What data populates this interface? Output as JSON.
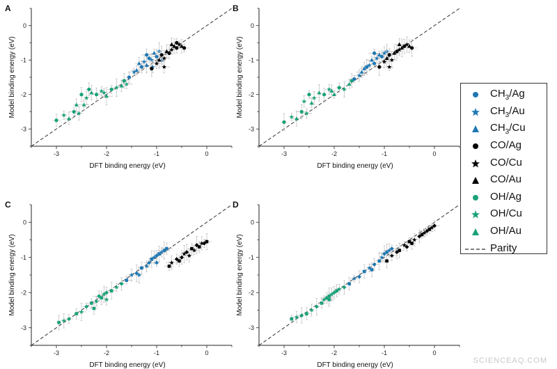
{
  "watermark": "SCIENCEAQ.COM",
  "colors": {
    "blue": "#1f78b4",
    "green": "#19a279",
    "black": "#000000",
    "error": "#bdbdbd",
    "parity": "#333333"
  },
  "legend": {
    "placement": "right",
    "items": [
      {
        "species": "CH",
        "sub": "3",
        "metal": "/Ag",
        "marker": "circle",
        "color": "#1f78b4"
      },
      {
        "species": "CH",
        "sub": "3",
        "metal": "/Au",
        "marker": "star",
        "color": "#1f78b4"
      },
      {
        "species": "CH",
        "sub": "3",
        "metal": "/Cu",
        "marker": "triangle",
        "color": "#1f78b4"
      },
      {
        "species": "CO",
        "sub": "",
        "metal": "/Ag",
        "marker": "circle",
        "color": "#000000"
      },
      {
        "species": "CO",
        "sub": "",
        "metal": "/Cu",
        "marker": "star",
        "color": "#000000"
      },
      {
        "species": "CO",
        "sub": "",
        "metal": "/Au",
        "marker": "triangle",
        "color": "#000000"
      },
      {
        "species": "OH",
        "sub": "",
        "metal": "/Ag",
        "marker": "circle",
        "color": "#19a279"
      },
      {
        "species": "OH",
        "sub": "",
        "metal": "/Cu",
        "marker": "star",
        "color": "#19a279"
      },
      {
        "species": "OH",
        "sub": "",
        "metal": "/Au",
        "marker": "triangle",
        "color": "#19a279"
      },
      {
        "species": "Parity",
        "sub": "",
        "metal": "",
        "marker": "dashed-line",
        "color": "#333333"
      }
    ]
  },
  "chart_data": [
    {
      "type": "scatter",
      "panel": "A",
      "xlabel": "DFT binding energy (eV)",
      "ylabel": "Model binding energy (eV)",
      "xlim": [
        -3.5,
        0.5
      ],
      "ylim": [
        -3.5,
        0.5
      ],
      "xticks": [
        -3,
        -2,
        -1,
        0
      ],
      "yticks": [
        -3,
        -2,
        -1,
        0
      ],
      "grid": false,
      "parity_line": true,
      "series": [
        {
          "group": "OH",
          "color": "#19a279",
          "points": [
            [
              -3.0,
              -2.75
            ],
            [
              -2.85,
              -2.6
            ],
            [
              -2.75,
              -2.7
            ],
            [
              -2.65,
              -2.5
            ],
            [
              -2.55,
              -2.55
            ],
            [
              -2.45,
              -2.3
            ],
            [
              -2.5,
              -2.0
            ],
            [
              -2.4,
              -2.1
            ],
            [
              -2.3,
              -1.95
            ],
            [
              -2.2,
              -2.0
            ],
            [
              -2.1,
              -1.9
            ],
            [
              -2.0,
              -2.05
            ],
            [
              -1.9,
              -1.85
            ],
            [
              -1.8,
              -1.8
            ],
            [
              -1.7,
              -1.75
            ],
            [
              -1.65,
              -1.6
            ],
            [
              -1.6,
              -1.7
            ],
            [
              -2.6,
              -2.3
            ],
            [
              -2.35,
              -1.85
            ],
            [
              -2.05,
              -1.95
            ]
          ]
        },
        {
          "group": "CH3",
          "color": "#1f78b4",
          "points": [
            [
              -1.55,
              -1.5
            ],
            [
              -1.45,
              -1.35
            ],
            [
              -1.4,
              -1.3
            ],
            [
              -1.3,
              -1.2
            ],
            [
              -1.25,
              -1.05
            ],
            [
              -1.2,
              -1.15
            ],
            [
              -1.15,
              -0.95
            ],
            [
              -1.1,
              -1.0
            ],
            [
              -1.05,
              -0.8
            ],
            [
              -1.0,
              -0.9
            ],
            [
              -0.95,
              -0.75
            ],
            [
              -1.35,
              -1.1
            ],
            [
              -1.2,
              -0.85
            ],
            [
              -1.08,
              -1.2
            ],
            [
              -0.9,
              -1.0
            ]
          ]
        },
        {
          "group": "CO",
          "color": "#000000",
          "points": [
            [
              -1.1,
              -1.25
            ],
            [
              -1.0,
              -1.1
            ],
            [
              -0.95,
              -1.0
            ],
            [
              -0.9,
              -0.85
            ],
            [
              -0.85,
              -0.95
            ],
            [
              -0.8,
              -0.75
            ],
            [
              -0.75,
              -0.8
            ],
            [
              -0.7,
              -0.7
            ],
            [
              -0.65,
              -0.6
            ],
            [
              -0.6,
              -0.65
            ],
            [
              -0.55,
              -0.55
            ],
            [
              -0.5,
              -0.6
            ],
            [
              -0.45,
              -0.65
            ],
            [
              -0.85,
              -1.2
            ],
            [
              -0.7,
              -0.55
            ],
            [
              -0.6,
              -0.5
            ]
          ]
        }
      ]
    },
    {
      "type": "scatter",
      "panel": "B",
      "xlabel": "DFT binding energy (eV)",
      "ylabel": "Model binding energy (eV)",
      "xlim": [
        -3.5,
        0.5
      ],
      "ylim": [
        -3.5,
        0.5
      ],
      "xticks": [
        -3,
        -2,
        -1,
        0
      ],
      "yticks": [
        -3,
        -2,
        -1,
        0
      ],
      "grid": false,
      "parity_line": true,
      "series": [
        {
          "group": "OH",
          "color": "#19a279",
          "points": [
            [
              -3.0,
              -2.8
            ],
            [
              -2.85,
              -2.65
            ],
            [
              -2.75,
              -2.7
            ],
            [
              -2.65,
              -2.5
            ],
            [
              -2.55,
              -2.55
            ],
            [
              -2.45,
              -2.25
            ],
            [
              -2.5,
              -2.0
            ],
            [
              -2.4,
              -2.1
            ],
            [
              -2.3,
              -1.95
            ],
            [
              -2.2,
              -2.0
            ],
            [
              -2.1,
              -1.85
            ],
            [
              -2.0,
              -2.0
            ],
            [
              -1.9,
              -1.8
            ],
            [
              -1.8,
              -1.85
            ],
            [
              -1.7,
              -1.7
            ],
            [
              -1.65,
              -1.6
            ],
            [
              -2.6,
              -2.2
            ],
            [
              -2.05,
              -1.9
            ]
          ]
        },
        {
          "group": "CH3",
          "color": "#1f78b4",
          "points": [
            [
              -1.6,
              -1.55
            ],
            [
              -1.5,
              -1.45
            ],
            [
              -1.45,
              -1.35
            ],
            [
              -1.35,
              -1.2
            ],
            [
              -1.3,
              -1.15
            ],
            [
              -1.25,
              -1.0
            ],
            [
              -1.2,
              -1.1
            ],
            [
              -1.15,
              -0.95
            ],
            [
              -1.1,
              -0.85
            ],
            [
              -1.05,
              -0.9
            ],
            [
              -1.0,
              -0.8
            ],
            [
              -1.4,
              -1.25
            ],
            [
              -1.2,
              -0.8
            ],
            [
              -0.95,
              -0.75
            ]
          ]
        },
        {
          "group": "CO",
          "color": "#000000",
          "points": [
            [
              -1.1,
              -1.2
            ],
            [
              -1.0,
              -1.05
            ],
            [
              -0.95,
              -0.95
            ],
            [
              -0.9,
              -0.85
            ],
            [
              -0.85,
              -1.0
            ],
            [
              -0.8,
              -0.8
            ],
            [
              -0.75,
              -0.75
            ],
            [
              -0.7,
              -0.7
            ],
            [
              -0.65,
              -0.65
            ],
            [
              -0.6,
              -0.6
            ],
            [
              -0.55,
              -0.55
            ],
            [
              -0.5,
              -0.6
            ],
            [
              -0.45,
              -0.65
            ],
            [
              -0.9,
              -1.2
            ],
            [
              -0.7,
              -0.55
            ]
          ]
        }
      ]
    },
    {
      "type": "scatter",
      "panel": "C",
      "xlabel": "DFT binding energy (eV)",
      "ylabel": "Model binding energy (eV)",
      "xlim": [
        -3.5,
        0.5
      ],
      "ylim": [
        -3.5,
        0.5
      ],
      "xticks": [
        -3,
        -2,
        -1,
        0
      ],
      "yticks": [
        -3,
        -2,
        -1,
        0
      ],
      "grid": false,
      "parity_line": true,
      "series": [
        {
          "group": "OH",
          "color": "#19a279",
          "points": [
            [
              -2.95,
              -2.85
            ],
            [
              -2.85,
              -2.8
            ],
            [
              -2.75,
              -2.75
            ],
            [
              -2.6,
              -2.6
            ],
            [
              -2.5,
              -2.55
            ],
            [
              -2.4,
              -2.4
            ],
            [
              -2.3,
              -2.3
            ],
            [
              -2.2,
              -2.25
            ],
            [
              -2.15,
              -2.1
            ],
            [
              -2.1,
              -2.15
            ],
            [
              -2.05,
              -2.05
            ],
            [
              -2.0,
              -2.0
            ],
            [
              -1.9,
              -1.95
            ],
            [
              -1.8,
              -1.85
            ],
            [
              -1.7,
              -1.75
            ],
            [
              -2.25,
              -2.45
            ],
            [
              -2.0,
              -2.2
            ]
          ]
        },
        {
          "group": "CH3",
          "color": "#1f78b4",
          "points": [
            [
              -1.6,
              -1.65
            ],
            [
              -1.5,
              -1.5
            ],
            [
              -1.4,
              -1.45
            ],
            [
              -1.3,
              -1.3
            ],
            [
              -1.2,
              -1.25
            ],
            [
              -1.15,
              -1.15
            ],
            [
              -1.1,
              -1.05
            ],
            [
              -1.05,
              -1.0
            ],
            [
              -1.0,
              -0.95
            ],
            [
              -0.95,
              -0.9
            ],
            [
              -0.9,
              -0.85
            ],
            [
              -0.85,
              -0.8
            ],
            [
              -0.8,
              -0.75
            ],
            [
              -1.35,
              -1.5
            ],
            [
              -1.0,
              -1.15
            ]
          ]
        },
        {
          "group": "CO",
          "color": "#000000",
          "points": [
            [
              -0.75,
              -1.25
            ],
            [
              -0.7,
              -1.15
            ],
            [
              -0.6,
              -1.05
            ],
            [
              -0.55,
              -1.1
            ],
            [
              -0.45,
              -0.9
            ],
            [
              -0.4,
              -0.85
            ],
            [
              -0.3,
              -0.75
            ],
            [
              -0.25,
              -0.8
            ],
            [
              -0.2,
              -0.65
            ],
            [
              -0.15,
              -0.7
            ],
            [
              -0.1,
              -0.6
            ],
            [
              -0.05,
              -0.6
            ],
            [
              0.0,
              -0.55
            ],
            [
              -0.35,
              -0.95
            ],
            [
              -0.5,
              -1.0
            ]
          ]
        }
      ]
    },
    {
      "type": "scatter",
      "panel": "D",
      "xlabel": "DFT binding energy (eV)",
      "ylabel": "Model binding energy (eV)",
      "xlim": [
        -3.5,
        0.5
      ],
      "ylim": [
        -3.5,
        0.5
      ],
      "xticks": [
        -3,
        -2,
        -1,
        0
      ],
      "yticks": [
        -3,
        -2,
        -1,
        0
      ],
      "grid": false,
      "parity_line": true,
      "series": [
        {
          "group": "OH",
          "color": "#19a279",
          "points": [
            [
              -2.85,
              -2.75
            ],
            [
              -2.75,
              -2.7
            ],
            [
              -2.65,
              -2.65
            ],
            [
              -2.55,
              -2.6
            ],
            [
              -2.45,
              -2.5
            ],
            [
              -2.35,
              -2.4
            ],
            [
              -2.25,
              -2.3
            ],
            [
              -2.2,
              -2.2
            ],
            [
              -2.15,
              -2.15
            ],
            [
              -2.1,
              -2.1
            ],
            [
              -2.05,
              -2.05
            ],
            [
              -2.0,
              -2.0
            ],
            [
              -1.95,
              -1.95
            ],
            [
              -1.9,
              -1.9
            ],
            [
              -1.8,
              -1.85
            ],
            [
              -2.1,
              -2.2
            ]
          ]
        },
        {
          "group": "CH3",
          "color": "#1f78b4",
          "points": [
            [
              -1.7,
              -1.75
            ],
            [
              -1.6,
              -1.6
            ],
            [
              -1.5,
              -1.55
            ],
            [
              -1.4,
              -1.4
            ],
            [
              -1.3,
              -1.3
            ],
            [
              -1.2,
              -1.2
            ],
            [
              -1.1,
              -1.1
            ],
            [
              -1.05,
              -1.0
            ],
            [
              -1.0,
              -0.9
            ],
            [
              -0.95,
              -0.85
            ],
            [
              -0.9,
              -0.8
            ],
            [
              -0.85,
              -0.75
            ],
            [
              -1.25,
              -1.35
            ]
          ]
        },
        {
          "group": "CO",
          "color": "#000000",
          "points": [
            [
              -0.95,
              -1.1
            ],
            [
              -0.85,
              -0.95
            ],
            [
              -0.75,
              -0.85
            ],
            [
              -0.7,
              -0.8
            ],
            [
              -0.6,
              -0.65
            ],
            [
              -0.55,
              -0.7
            ],
            [
              -0.5,
              -0.55
            ],
            [
              -0.4,
              -0.5
            ],
            [
              -0.3,
              -0.4
            ],
            [
              -0.25,
              -0.35
            ],
            [
              -0.2,
              -0.3
            ],
            [
              -0.15,
              -0.25
            ],
            [
              -0.1,
              -0.2
            ],
            [
              -0.05,
              -0.15
            ],
            [
              0.0,
              -0.1
            ],
            [
              -0.45,
              -0.6
            ]
          ]
        }
      ]
    }
  ]
}
